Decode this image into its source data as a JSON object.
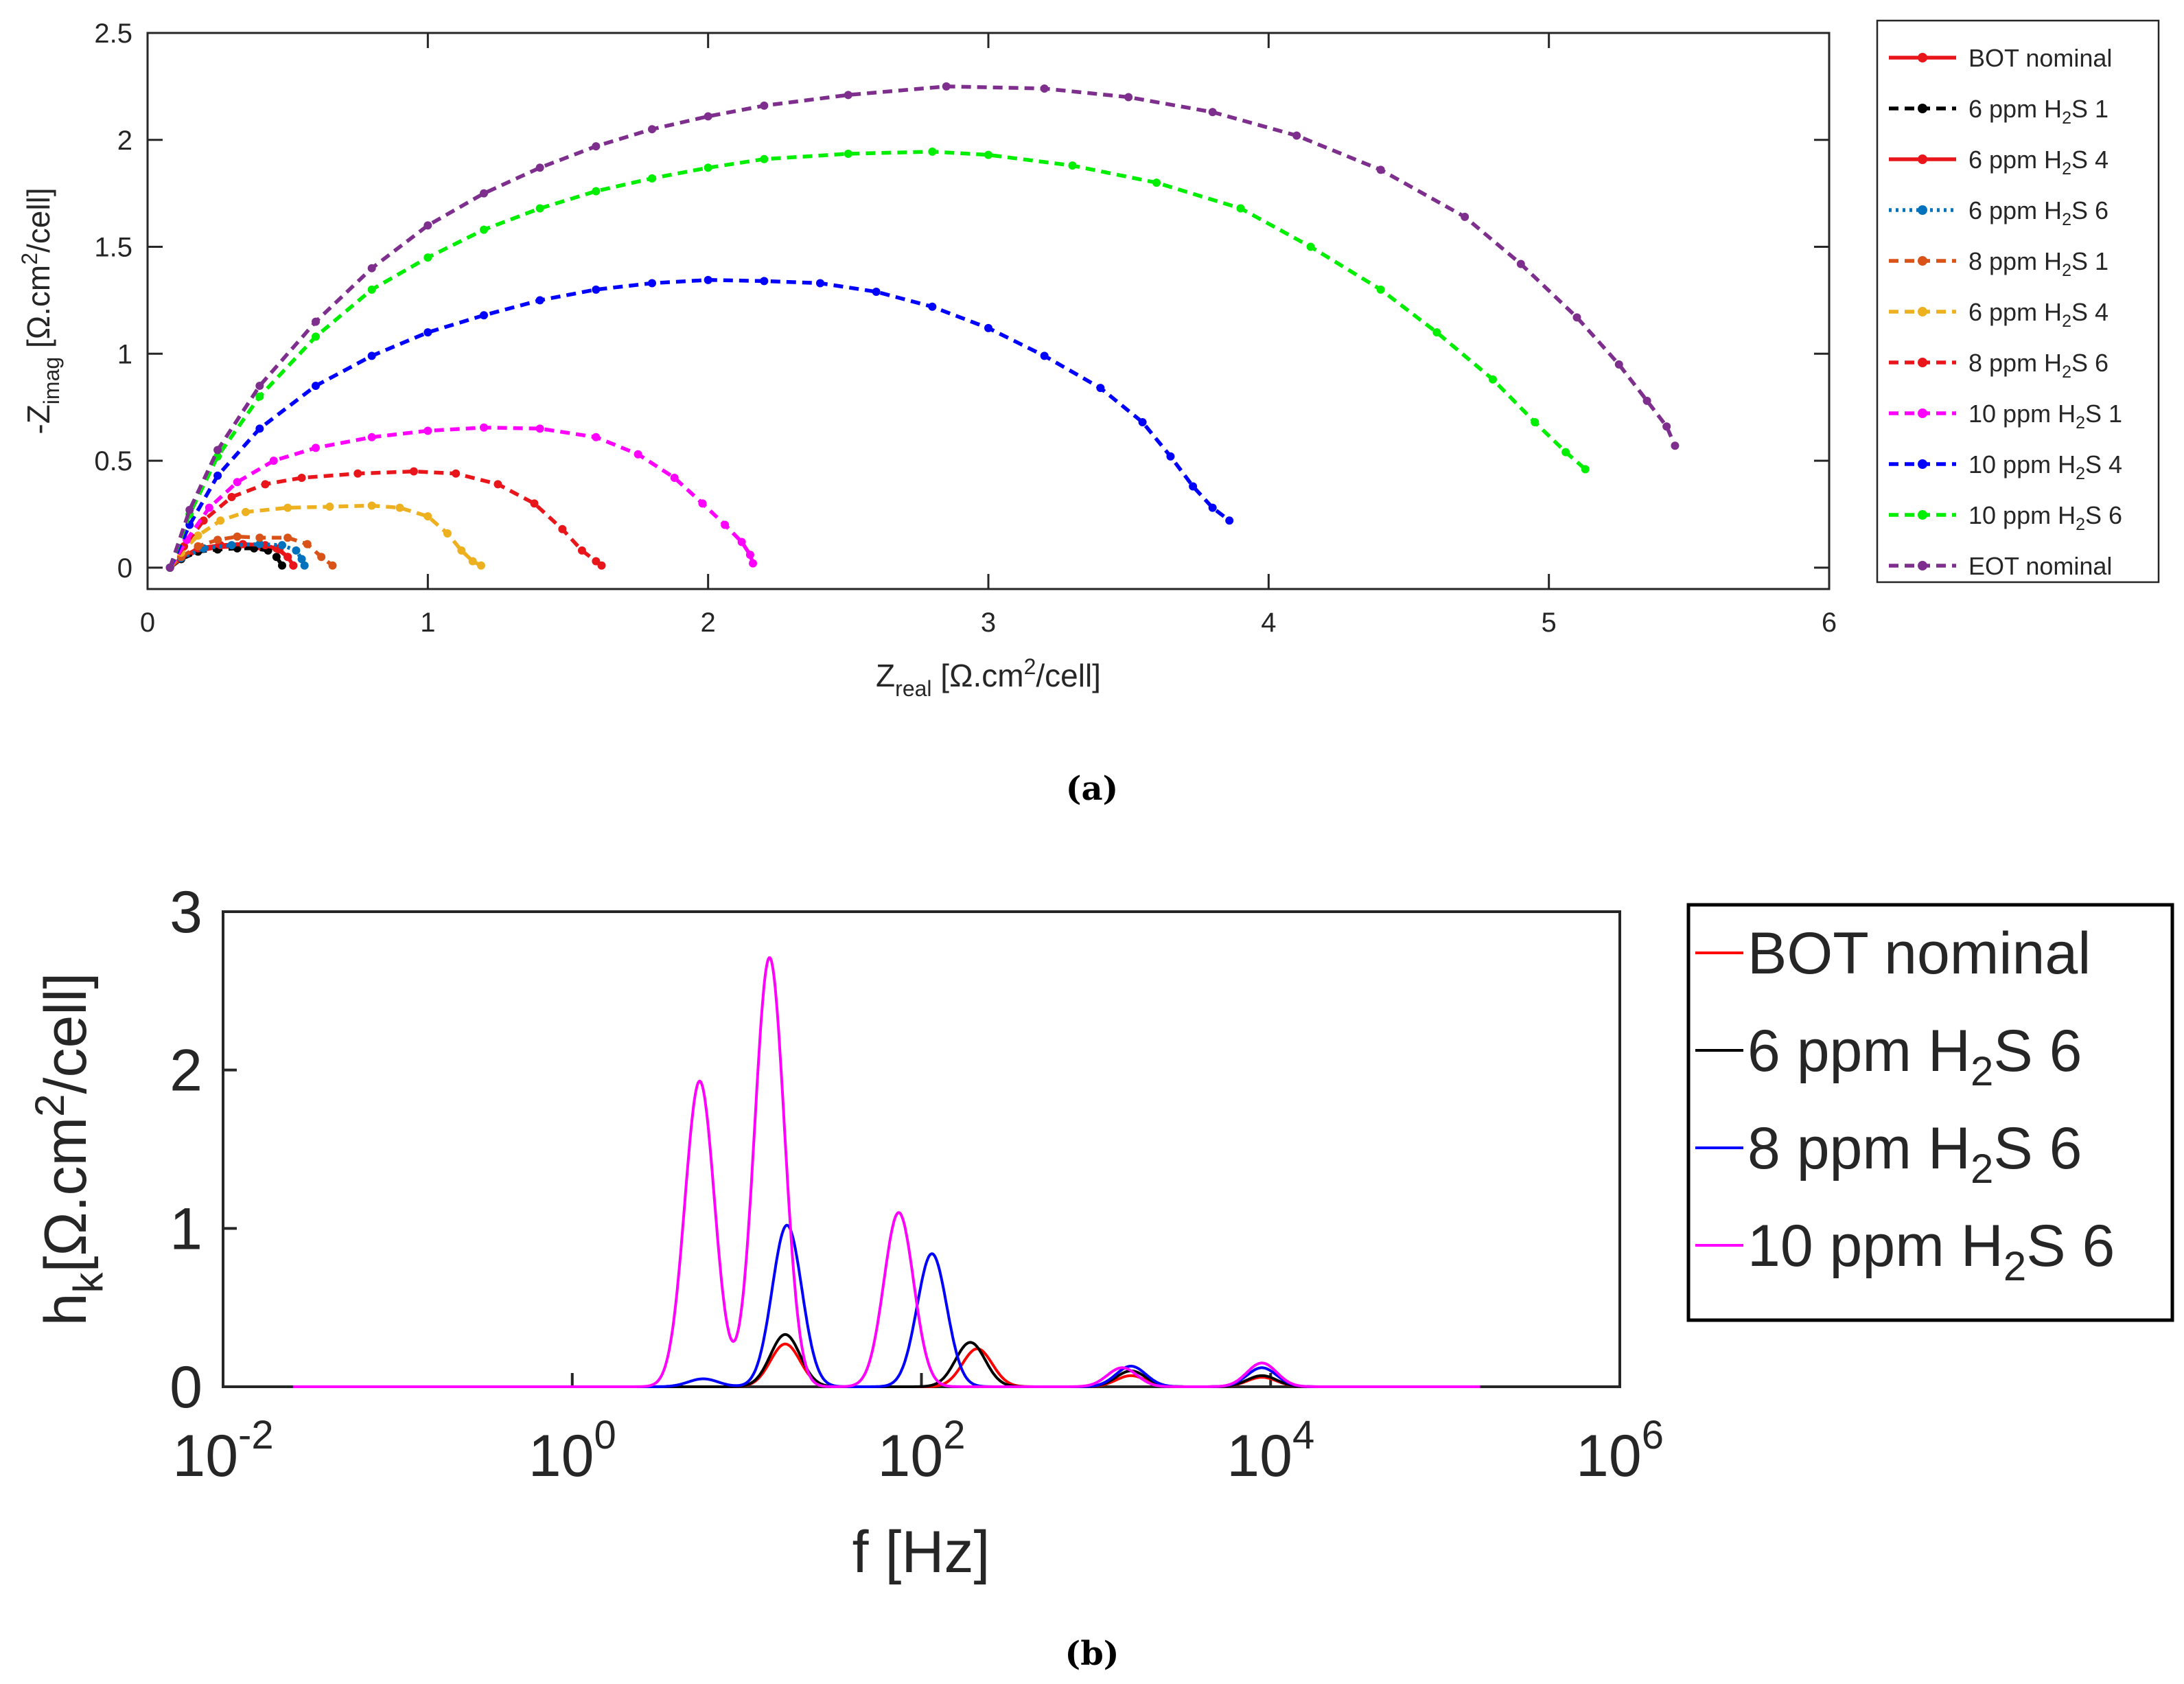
{
  "panel_a": {
    "caption": "(a)",
    "xlabel_main": "Z",
    "xlabel_sub": "real",
    "xlabel_units_pre": " [Ω.cm",
    "xlabel_units_sup": "2",
    "xlabel_units_post": "/cell]",
    "ylabel_prefix": "-Z",
    "ylabel_sub": "imag",
    "ylabel_units_pre": " [Ω.cm",
    "ylabel_units_sup": "2",
    "ylabel_units_post": "/cell]"
  },
  "panel_b": {
    "caption": "(b)",
    "xlabel": "f [Hz]",
    "ylabel_main": "h",
    "ylabel_sub": "k",
    "ylabel_units_pre": "[Ω.cm",
    "ylabel_units_sup": "2",
    "ylabel_units_post": "/cell]"
  },
  "chart_data": [
    {
      "type": "line",
      "title": "",
      "xlabel": "Z_real [Ω.cm²/cell]",
      "ylabel": "-Z_imag [Ω.cm²/cell]",
      "xlim": [
        0,
        6
      ],
      "ylim": [
        -0.1,
        2.5
      ],
      "xticks": [
        0,
        1,
        2,
        3,
        4,
        5,
        6
      ],
      "yticks": [
        0,
        0.5,
        1,
        1.5,
        2,
        2.5
      ],
      "xtick_labels": [
        "0",
        "1",
        "2",
        "3",
        "4",
        "5",
        "6"
      ],
      "ytick_labels": [
        "0",
        "0.5",
        "1",
        "1.5",
        "2",
        "2.5"
      ],
      "grid": false,
      "legend_position": "outside-right",
      "series": [
        {
          "label_pre": "BOT nominal",
          "label_sub": "",
          "label_post": "",
          "color": "#e8161b",
          "dash": "solid",
          "marker": "dot",
          "points": [
            [
              0.08,
              0
            ],
            [
              0.12,
              0.04
            ],
            [
              0.18,
              0.08
            ],
            [
              0.25,
              0.095
            ],
            [
              0.32,
              0.1
            ],
            [
              0.4,
              0.1
            ],
            [
              0.46,
              0.09
            ],
            [
              0.5,
              0.05
            ],
            [
              0.52,
              0.01
            ]
          ]
        },
        {
          "label_pre": "6 ppm H",
          "label_sub": "2",
          "label_post": "S 1",
          "color": "#000000",
          "dash": "dashed",
          "marker": "dot",
          "points": [
            [
              0.08,
              0
            ],
            [
              0.12,
              0.04
            ],
            [
              0.18,
              0.075
            ],
            [
              0.25,
              0.085
            ],
            [
              0.32,
              0.09
            ],
            [
              0.38,
              0.09
            ],
            [
              0.43,
              0.08
            ],
            [
              0.46,
              0.05
            ],
            [
              0.48,
              0.01
            ]
          ]
        },
        {
          "label_pre": "6 ppm H",
          "label_sub": "2",
          "label_post": "S 4",
          "color": "#e8161b",
          "dash": "solid",
          "marker": "dot",
          "points": [
            [
              0.08,
              0
            ],
            [
              0.12,
              0.045
            ],
            [
              0.18,
              0.09
            ],
            [
              0.26,
              0.105
            ],
            [
              0.34,
              0.11
            ],
            [
              0.42,
              0.105
            ],
            [
              0.47,
              0.085
            ],
            [
              0.5,
              0.05
            ],
            [
              0.52,
              0.01
            ]
          ]
        },
        {
          "label_pre": "6 ppm H",
          "label_sub": "2",
          "label_post": "S 6",
          "color": "#0072bd",
          "dash": "dotted",
          "marker": "dot",
          "points": [
            [
              0.08,
              0
            ],
            [
              0.12,
              0.045
            ],
            [
              0.2,
              0.09
            ],
            [
              0.3,
              0.105
            ],
            [
              0.4,
              0.11
            ],
            [
              0.48,
              0.105
            ],
            [
              0.53,
              0.08
            ],
            [
              0.55,
              0.04
            ],
            [
              0.56,
              0.01
            ]
          ]
        },
        {
          "label_pre": "8 ppm H",
          "label_sub": "2",
          "label_post": "S 1",
          "color": "#d95319",
          "dash": "dashed",
          "marker": "dot",
          "points": [
            [
              0.08,
              0
            ],
            [
              0.12,
              0.05
            ],
            [
              0.18,
              0.1
            ],
            [
              0.25,
              0.13
            ],
            [
              0.32,
              0.145
            ],
            [
              0.4,
              0.14
            ],
            [
              0.5,
              0.14
            ],
            [
              0.57,
              0.11
            ],
            [
              0.62,
              0.05
            ],
            [
              0.66,
              0.01
            ]
          ]
        },
        {
          "label_pre": "6 ppm H",
          "label_sub": "2",
          "label_post": "S 4",
          "color": "#edb120",
          "dash": "dashed",
          "marker": "dot",
          "points": [
            [
              0.08,
              0
            ],
            [
              0.12,
              0.07
            ],
            [
              0.18,
              0.15
            ],
            [
              0.26,
              0.22
            ],
            [
              0.35,
              0.26
            ],
            [
              0.5,
              0.28
            ],
            [
              0.65,
              0.285
            ],
            [
              0.8,
              0.29
            ],
            [
              0.9,
              0.28
            ],
            [
              1.0,
              0.24
            ],
            [
              1.07,
              0.16
            ],
            [
              1.12,
              0.08
            ],
            [
              1.16,
              0.03
            ],
            [
              1.19,
              0.01
            ]
          ]
        },
        {
          "label_pre": "8 ppm H",
          "label_sub": "2",
          "label_post": "S 6",
          "color": "#e8161b",
          "dash": "dashed",
          "marker": "dot",
          "points": [
            [
              0.08,
              0
            ],
            [
              0.13,
              0.1
            ],
            [
              0.2,
              0.22
            ],
            [
              0.3,
              0.33
            ],
            [
              0.42,
              0.39
            ],
            [
              0.55,
              0.42
            ],
            [
              0.75,
              0.44
            ],
            [
              0.95,
              0.45
            ],
            [
              1.1,
              0.44
            ],
            [
              1.25,
              0.39
            ],
            [
              1.38,
              0.3
            ],
            [
              1.48,
              0.18
            ],
            [
              1.55,
              0.08
            ],
            [
              1.6,
              0.03
            ],
            [
              1.62,
              0.01
            ]
          ]
        },
        {
          "label_pre": "10 ppm H",
          "label_sub": "2",
          "label_post": "S 1",
          "color": "#ff00ff",
          "dash": "dashed",
          "marker": "dot",
          "points": [
            [
              0.08,
              0
            ],
            [
              0.14,
              0.13
            ],
            [
              0.22,
              0.28
            ],
            [
              0.32,
              0.4
            ],
            [
              0.45,
              0.5
            ],
            [
              0.6,
              0.56
            ],
            [
              0.8,
              0.61
            ],
            [
              1.0,
              0.64
            ],
            [
              1.2,
              0.655
            ],
            [
              1.4,
              0.65
            ],
            [
              1.6,
              0.61
            ],
            [
              1.75,
              0.53
            ],
            [
              1.88,
              0.42
            ],
            [
              1.98,
              0.3
            ],
            [
              2.06,
              0.2
            ],
            [
              2.12,
              0.12
            ],
            [
              2.15,
              0.06
            ],
            [
              2.16,
              0.02
            ]
          ]
        },
        {
          "label_pre": "10 ppm H",
          "label_sub": "2",
          "label_post": "S 4",
          "color": "#0000ff",
          "dash": "dashed",
          "marker": "dot",
          "points": [
            [
              0.08,
              0
            ],
            [
              0.15,
              0.2
            ],
            [
              0.25,
              0.43
            ],
            [
              0.4,
              0.65
            ],
            [
              0.6,
              0.85
            ],
            [
              0.8,
              0.99
            ],
            [
              1.0,
              1.1
            ],
            [
              1.2,
              1.18
            ],
            [
              1.4,
              1.25
            ],
            [
              1.6,
              1.3
            ],
            [
              1.8,
              1.33
            ],
            [
              2.0,
              1.345
            ],
            [
              2.2,
              1.34
            ],
            [
              2.4,
              1.33
            ],
            [
              2.6,
              1.29
            ],
            [
              2.8,
              1.22
            ],
            [
              3.0,
              1.12
            ],
            [
              3.2,
              0.99
            ],
            [
              3.4,
              0.84
            ],
            [
              3.55,
              0.68
            ],
            [
              3.65,
              0.52
            ],
            [
              3.73,
              0.38
            ],
            [
              3.8,
              0.28
            ],
            [
              3.86,
              0.22
            ]
          ]
        },
        {
          "label_pre": "10 ppm H",
          "label_sub": "2",
          "label_post": "S 6",
          "color": "#00ee00",
          "dash": "dashed",
          "marker": "dot",
          "points": [
            [
              0.08,
              0
            ],
            [
              0.15,
              0.25
            ],
            [
              0.25,
              0.52
            ],
            [
              0.4,
              0.8
            ],
            [
              0.6,
              1.08
            ],
            [
              0.8,
              1.3
            ],
            [
              1.0,
              1.45
            ],
            [
              1.2,
              1.58
            ],
            [
              1.4,
              1.68
            ],
            [
              1.6,
              1.76
            ],
            [
              1.8,
              1.82
            ],
            [
              2.0,
              1.87
            ],
            [
              2.2,
              1.91
            ],
            [
              2.5,
              1.935
            ],
            [
              2.8,
              1.945
            ],
            [
              3.0,
              1.93
            ],
            [
              3.3,
              1.88
            ],
            [
              3.6,
              1.8
            ],
            [
              3.9,
              1.68
            ],
            [
              4.15,
              1.5
            ],
            [
              4.4,
              1.3
            ],
            [
              4.6,
              1.1
            ],
            [
              4.8,
              0.88
            ],
            [
              4.95,
              0.68
            ],
            [
              5.06,
              0.54
            ],
            [
              5.13,
              0.46
            ]
          ]
        },
        {
          "label_pre": "EOT nominal",
          "label_sub": "",
          "label_post": "",
          "color": "#7e2f8e",
          "dash": "dashed",
          "marker": "dot",
          "points": [
            [
              0.08,
              0
            ],
            [
              0.15,
              0.27
            ],
            [
              0.25,
              0.55
            ],
            [
              0.4,
              0.85
            ],
            [
              0.6,
              1.15
            ],
            [
              0.8,
              1.4
            ],
            [
              1.0,
              1.6
            ],
            [
              1.2,
              1.75
            ],
            [
              1.4,
              1.87
            ],
            [
              1.6,
              1.97
            ],
            [
              1.8,
              2.05
            ],
            [
              2.0,
              2.11
            ],
            [
              2.2,
              2.16
            ],
            [
              2.5,
              2.21
            ],
            [
              2.85,
              2.25
            ],
            [
              3.2,
              2.24
            ],
            [
              3.5,
              2.2
            ],
            [
              3.8,
              2.13
            ],
            [
              4.1,
              2.02
            ],
            [
              4.4,
              1.86
            ],
            [
              4.7,
              1.64
            ],
            [
              4.9,
              1.42
            ],
            [
              5.1,
              1.17
            ],
            [
              5.25,
              0.95
            ],
            [
              5.35,
              0.78
            ],
            [
              5.42,
              0.66
            ],
            [
              5.45,
              0.57
            ]
          ]
        }
      ]
    },
    {
      "type": "line",
      "title": "",
      "xlabel": "f [Hz]",
      "ylabel": "h_k[Ω.cm²/cell]",
      "xscale": "log",
      "xlim_log10": [
        -2,
        6
      ],
      "ylim": [
        0,
        3
      ],
      "x_range_log10": [
        -1.6,
        5.2
      ],
      "xticks_log10": [
        -2,
        0,
        2,
        4,
        6
      ],
      "xtick_base": "10",
      "xtick_exponents": [
        "-2",
        "0",
        "2",
        "4",
        "6"
      ],
      "yticks": [
        0,
        1,
        2,
        3
      ],
      "ytick_labels": [
        "0",
        "1",
        "2",
        "3"
      ],
      "grid": false,
      "legend_position": "outside-right",
      "peak_width_log10": 0.085,
      "series": [
        {
          "label_pre": "BOT nominal",
          "label_sub": "",
          "label_post": "",
          "color": "#ff0000",
          "peaks": [
            [
              1.22,
              0.27
            ],
            [
              2.32,
              0.24
            ],
            [
              3.2,
              0.07
            ],
            [
              3.95,
              0.06
            ]
          ]
        },
        {
          "label_pre": "6 ppm H",
          "label_sub": "2",
          "label_post": "S 6",
          "color": "#000000",
          "peaks": [
            [
              1.22,
              0.33
            ],
            [
              2.28,
              0.28
            ],
            [
              3.2,
              0.1
            ],
            [
              3.95,
              0.07
            ]
          ]
        },
        {
          "label_pre": "8 ppm H",
          "label_sub": "2",
          "label_post": "S 6",
          "color": "#0000ff",
          "peaks": [
            [
              0.75,
              0.05
            ],
            [
              1.23,
              1.02
            ],
            [
              2.06,
              0.84
            ],
            [
              3.2,
              0.13
            ],
            [
              3.95,
              0.12
            ]
          ]
        },
        {
          "label_pre": "10 ppm H",
          "label_sub": "2",
          "label_post": "S 6",
          "color": "#ff00ff",
          "peaks": [
            [
              0.73,
              1.93
            ],
            [
              1.13,
              2.71
            ],
            [
              1.87,
              1.1
            ],
            [
              3.15,
              0.12
            ],
            [
              3.95,
              0.15
            ]
          ]
        }
      ]
    }
  ]
}
